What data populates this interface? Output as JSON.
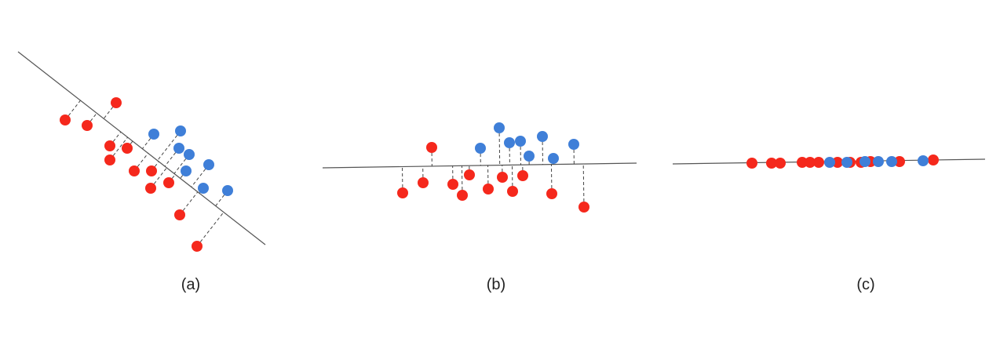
{
  "colors": {
    "red": "#f5281c",
    "blue": "#3f7fd8",
    "axis": "#555555"
  },
  "panels": [
    {
      "id": "a",
      "label": "(a)"
    },
    {
      "id": "b",
      "label": "(b)"
    },
    {
      "id": "c",
      "label": "(c)"
    }
  ]
}
